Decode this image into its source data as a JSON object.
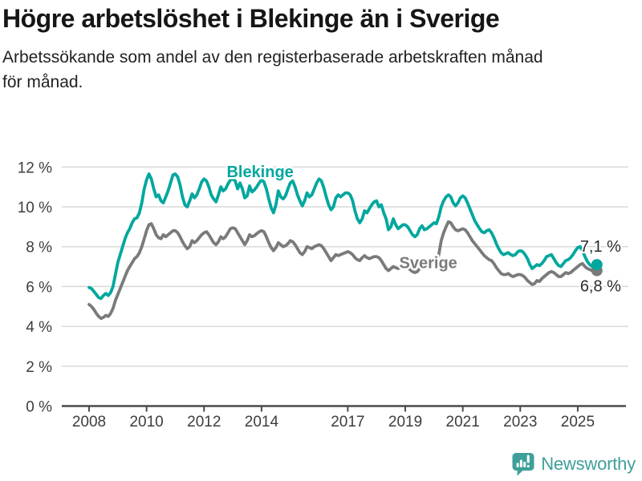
{
  "header": {
    "title": "Högre arbetslöshet i Blekinge än i Sverige",
    "subtitle_lines": [
      "Arbetssökande som andel av den registerbaserade arbetskraften månad",
      "för månad."
    ]
  },
  "footer": {
    "brand": "Newsworthy",
    "brand_color": "#3f9f9a"
  },
  "chart_data": {
    "type": "line",
    "title": "Högre arbetslöshet i Blekinge än i Sverige",
    "ylabel": "",
    "xlabel": "",
    "ylim": [
      0,
      12
    ],
    "grid": "horizontal",
    "legend_position": "inline-labels",
    "y_ticks": [
      0,
      2,
      4,
      6,
      8,
      10,
      12
    ],
    "y_tick_labels": [
      "0 %",
      "2 %",
      "4 %",
      "6 %",
      "8 %",
      "10 %",
      "12 %"
    ],
    "x_ticks": [
      2008,
      2010,
      2012,
      2014,
      2017,
      2019,
      2021,
      2023,
      2025
    ],
    "x_tick_labels": [
      "2008",
      "2010",
      "2012",
      "2014",
      "2017",
      "2019",
      "2021",
      "2023",
      "2025"
    ],
    "x_start_year": 2008,
    "x_step_months": 1,
    "series": [
      {
        "name": "Sverige",
        "color": "#7a7a7a",
        "end_label": "6,8 %",
        "end_label_position": "below",
        "label_at": {
          "year": 2019.8,
          "value": 6.92
        },
        "values": [
          5.1,
          5.0,
          4.85,
          4.65,
          4.5,
          4.4,
          4.45,
          4.55,
          4.5,
          4.65,
          4.9,
          5.3,
          5.6,
          5.9,
          6.2,
          6.5,
          6.8,
          7.0,
          7.2,
          7.4,
          7.5,
          7.7,
          8.0,
          8.4,
          8.8,
          9.1,
          9.15,
          8.9,
          8.6,
          8.45,
          8.4,
          8.6,
          8.5,
          8.6,
          8.7,
          8.8,
          8.8,
          8.7,
          8.5,
          8.25,
          8.05,
          7.9,
          8.0,
          8.3,
          8.2,
          8.3,
          8.45,
          8.6,
          8.7,
          8.75,
          8.6,
          8.4,
          8.2,
          8.1,
          8.25,
          8.5,
          8.4,
          8.5,
          8.7,
          8.9,
          8.95,
          8.9,
          8.7,
          8.5,
          8.3,
          8.1,
          8.3,
          8.6,
          8.5,
          8.55,
          8.65,
          8.75,
          8.8,
          8.75,
          8.5,
          8.2,
          7.95,
          7.8,
          7.95,
          8.2,
          8.1,
          8.0,
          8.05,
          8.15,
          8.3,
          8.25,
          8.1,
          7.9,
          7.7,
          7.6,
          7.75,
          8.0,
          7.95,
          7.9,
          8.0,
          8.05,
          8.1,
          8.05,
          7.9,
          7.7,
          7.5,
          7.3,
          7.45,
          7.6,
          7.55,
          7.6,
          7.65,
          7.7,
          7.75,
          7.7,
          7.6,
          7.45,
          7.35,
          7.3,
          7.45,
          7.55,
          7.45,
          7.4,
          7.45,
          7.5,
          7.5,
          7.45,
          7.3,
          7.1,
          6.9,
          6.8,
          6.9,
          7.0,
          6.95,
          6.9,
          6.95,
          7.0,
          7.0,
          6.95,
          6.85,
          6.75,
          6.7,
          6.75,
          6.9,
          7.0,
          6.9,
          6.95,
          7.0,
          7.1,
          7.2,
          7.2,
          7.6,
          8.3,
          8.7,
          9.0,
          9.25,
          9.2,
          9.0,
          8.85,
          8.8,
          8.85,
          8.9,
          8.85,
          8.7,
          8.5,
          8.3,
          8.15,
          8.0,
          7.85,
          7.7,
          7.55,
          7.45,
          7.35,
          7.3,
          7.15,
          6.95,
          6.8,
          6.65,
          6.6,
          6.6,
          6.65,
          6.55,
          6.5,
          6.55,
          6.6,
          6.6,
          6.55,
          6.45,
          6.3,
          6.2,
          6.1,
          6.15,
          6.3,
          6.25,
          6.4,
          6.5,
          6.6,
          6.7,
          6.75,
          6.7,
          6.6,
          6.5,
          6.5,
          6.6,
          6.7,
          6.65,
          6.7,
          6.8,
          6.9,
          7.0,
          7.1,
          7.15,
          7.0,
          6.9,
          6.85,
          6.8,
          6.75,
          6.8
        ]
      },
      {
        "name": "Blekinge",
        "color": "#00a79e",
        "end_label": "7,1 %",
        "end_label_position": "above",
        "label_at": {
          "year": 2013.95,
          "value": 11.49
        },
        "values": [
          5.95,
          5.9,
          5.75,
          5.6,
          5.45,
          5.4,
          5.55,
          5.65,
          5.55,
          5.7,
          6.0,
          6.6,
          7.2,
          7.6,
          8.0,
          8.4,
          8.7,
          8.9,
          9.2,
          9.4,
          9.45,
          9.7,
          10.2,
          10.9,
          11.35,
          11.65,
          11.4,
          10.9,
          10.5,
          10.6,
          10.3,
          10.2,
          10.5,
          10.8,
          11.2,
          11.6,
          11.65,
          11.5,
          11.1,
          10.5,
          10.1,
          10.0,
          10.3,
          10.65,
          10.45,
          10.6,
          10.9,
          11.25,
          11.4,
          11.3,
          11.0,
          10.6,
          10.4,
          10.25,
          10.6,
          11.0,
          10.8,
          10.9,
          11.15,
          11.35,
          11.4,
          11.3,
          10.9,
          11.2,
          10.9,
          10.45,
          10.55,
          11.05,
          10.75,
          10.85,
          11.0,
          11.2,
          11.35,
          11.25,
          10.9,
          10.4,
          9.95,
          9.7,
          10.1,
          10.8,
          10.5,
          10.4,
          10.55,
          10.9,
          11.2,
          11.3,
          11.0,
          10.6,
          10.3,
          10.05,
          10.3,
          10.7,
          10.5,
          10.6,
          10.9,
          11.2,
          11.4,
          11.3,
          10.95,
          10.5,
          10.1,
          9.85,
          10.0,
          10.45,
          10.6,
          10.5,
          10.6,
          10.7,
          10.7,
          10.6,
          10.3,
          9.8,
          9.4,
          9.2,
          9.4,
          9.8,
          9.7,
          9.9,
          10.1,
          10.25,
          10.3,
          10.0,
          10.1,
          9.7,
          9.4,
          8.85,
          9.0,
          9.4,
          9.1,
          8.9,
          9.0,
          9.1,
          9.1,
          9.0,
          8.8,
          8.6,
          8.5,
          8.6,
          8.9,
          9.05,
          8.85,
          8.9,
          9.0,
          9.1,
          9.2,
          9.15,
          9.5,
          10.0,
          10.3,
          10.5,
          10.6,
          10.5,
          10.2,
          10.05,
          10.2,
          10.45,
          10.55,
          10.45,
          10.2,
          9.9,
          9.6,
          9.3,
          9.1,
          8.9,
          8.75,
          8.7,
          8.8,
          8.85,
          8.7,
          8.45,
          8.15,
          7.9,
          7.7,
          7.6,
          7.65,
          7.7,
          7.6,
          7.55,
          7.6,
          7.75,
          7.8,
          7.75,
          7.6,
          7.4,
          7.1,
          6.9,
          7.0,
          7.1,
          7.05,
          7.15,
          7.3,
          7.5,
          7.55,
          7.6,
          7.4,
          7.2,
          7.05,
          7.0,
          7.15,
          7.3,
          7.35,
          7.45,
          7.6,
          7.8,
          7.95,
          8.0,
          7.8,
          7.5,
          7.25,
          7.1,
          7.0,
          7.05,
          7.1
        ]
      }
    ]
  }
}
